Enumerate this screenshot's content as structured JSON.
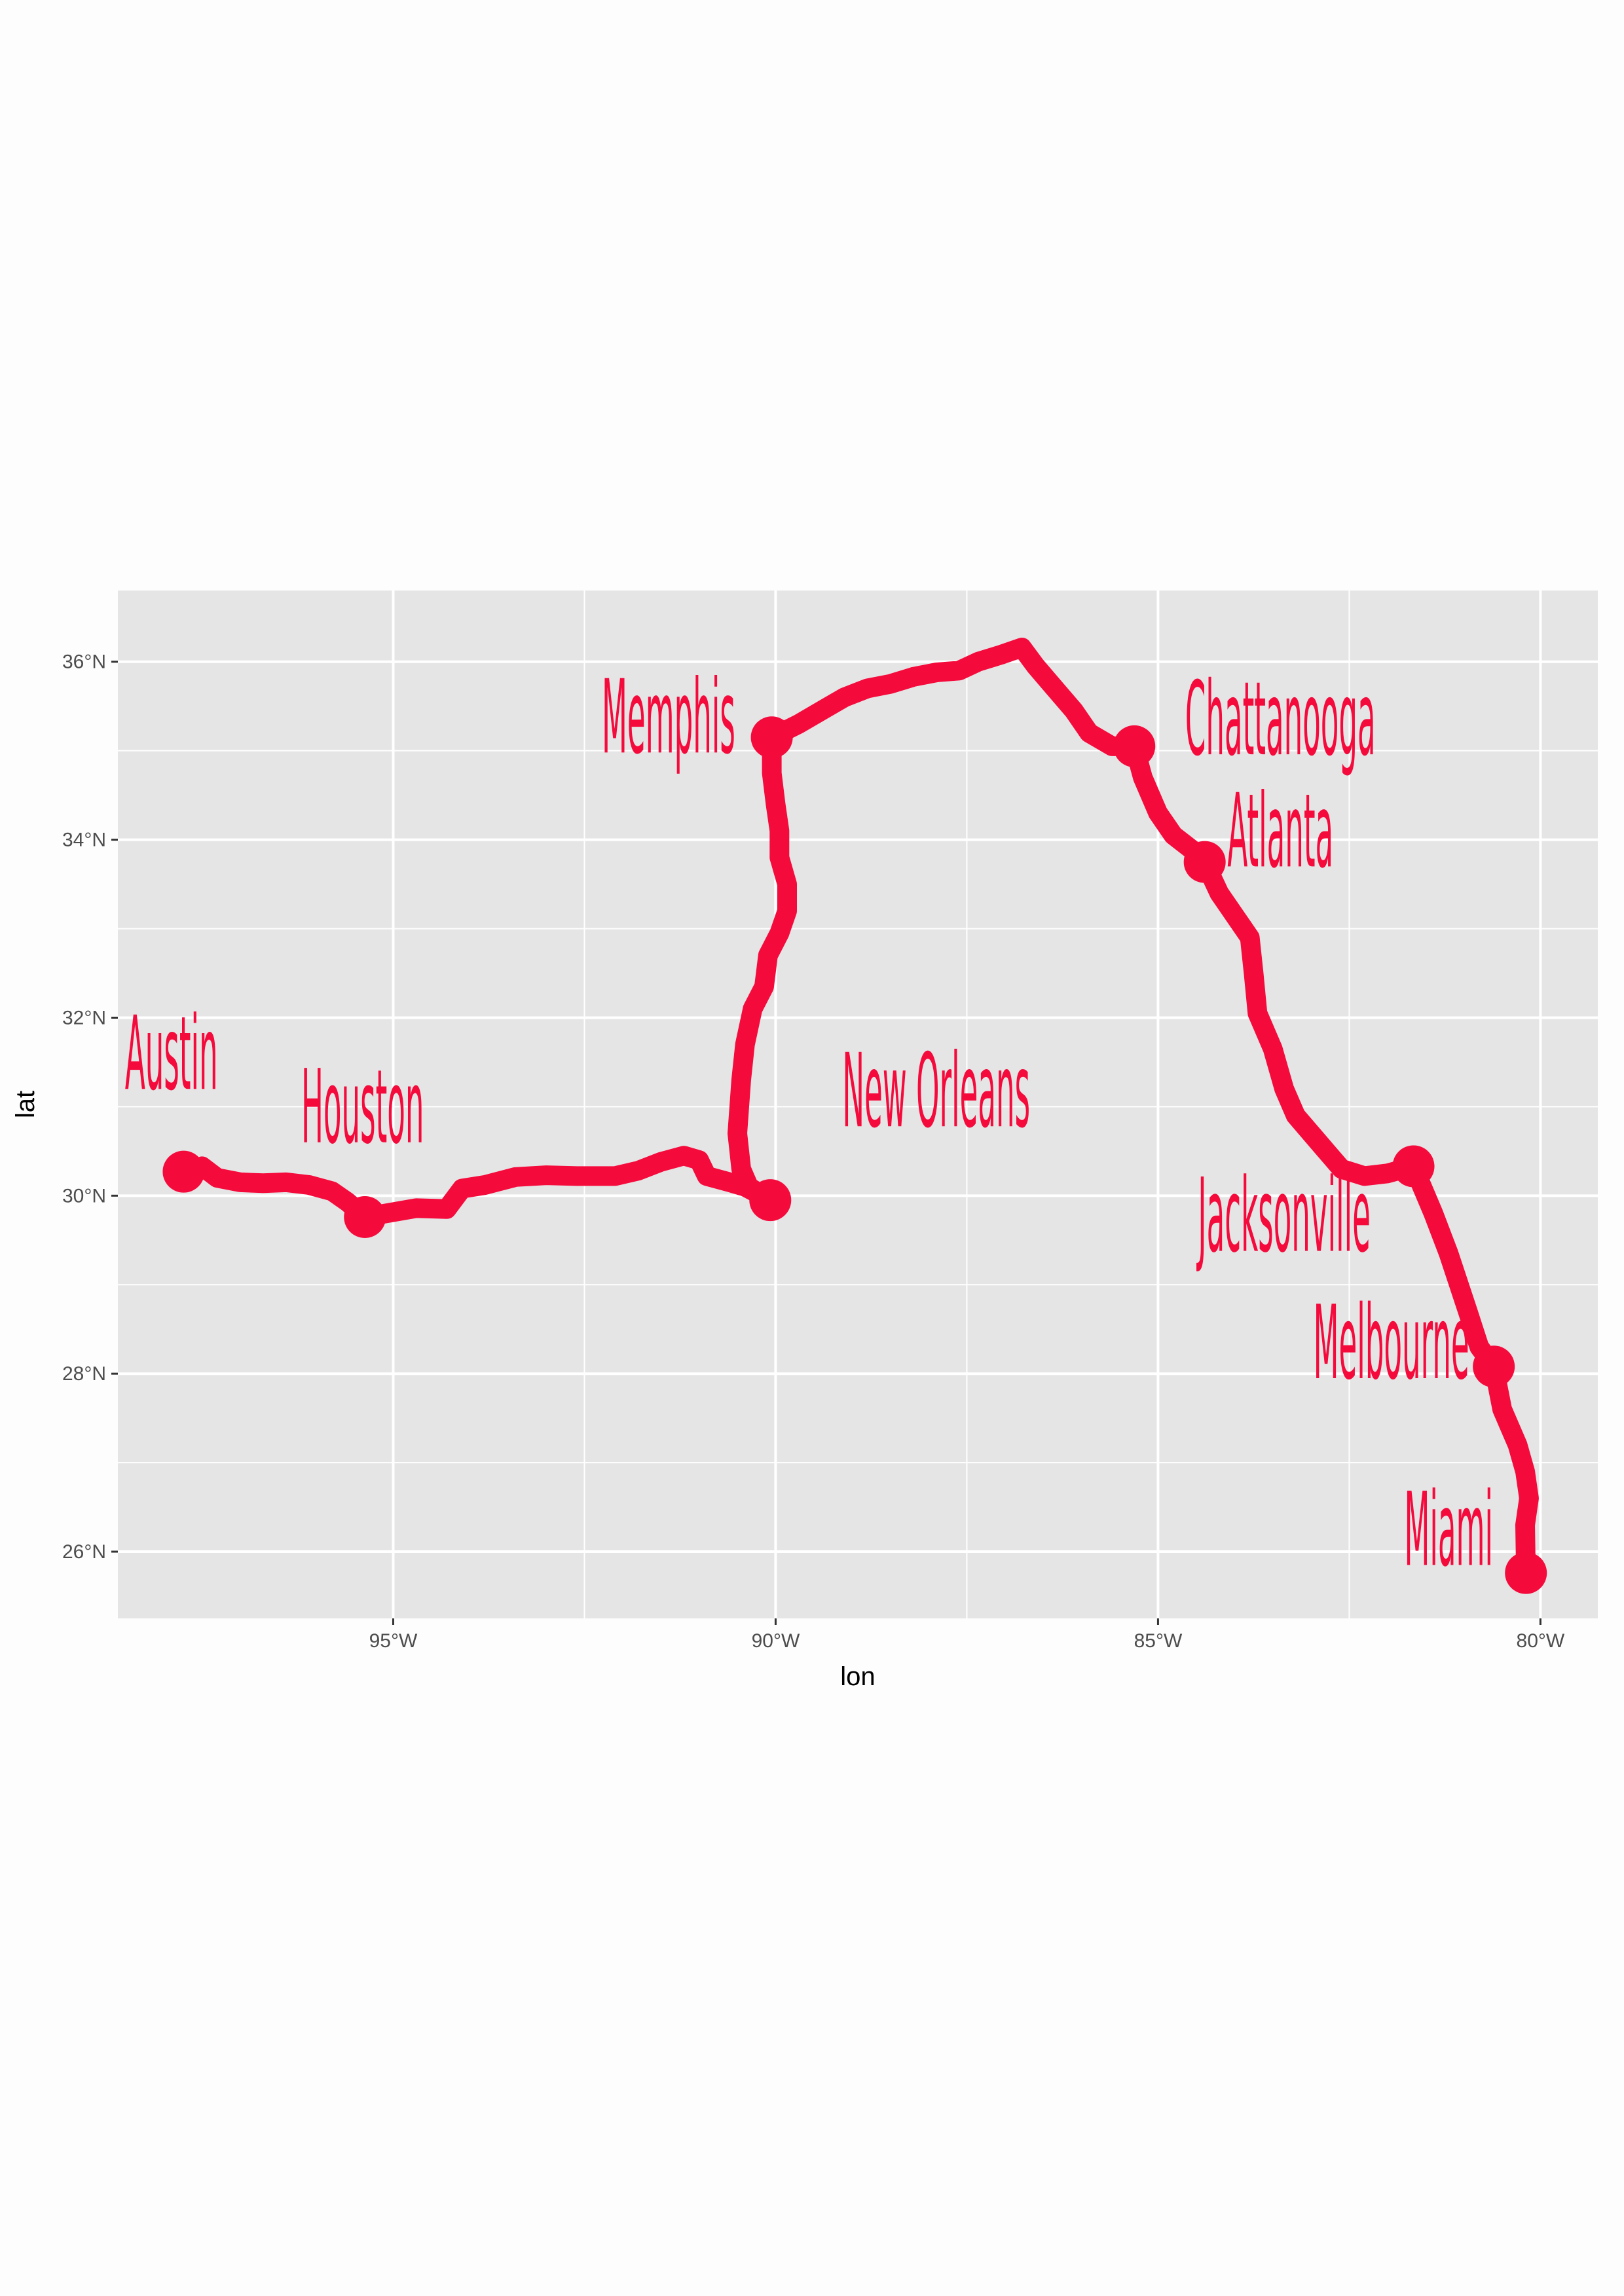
{
  "chart_data": {
    "type": "line",
    "xlabel": "lon",
    "ylabel": "lat",
    "xlim": [
      -98.6,
      -79.25
    ],
    "ylim": [
      25.25,
      36.8
    ],
    "x_ticks": [
      -95,
      -90,
      -85,
      -80
    ],
    "x_tick_labels": [
      "95°W",
      "90°W",
      "85°W",
      "80°W"
    ],
    "y_ticks": [
      26,
      28,
      30,
      32,
      34,
      36
    ],
    "y_tick_labels": [
      "26°N",
      "28°N",
      "30°N",
      "32°N",
      "34°N",
      "36°N"
    ],
    "grid": true,
    "colors": {
      "route": "#f50a3c",
      "panel": "#e5e5e5",
      "grid": "#ffffff"
    },
    "route": [
      [
        -97.74,
        30.27
      ],
      [
        -97.5,
        30.33
      ],
      [
        -97.3,
        30.2
      ],
      [
        -97.0,
        30.15
      ],
      [
        -96.7,
        30.14
      ],
      [
        -96.4,
        30.15
      ],
      [
        -96.1,
        30.12
      ],
      [
        -95.8,
        30.05
      ],
      [
        -95.6,
        29.93
      ],
      [
        -95.37,
        29.76
      ],
      [
        -95.1,
        29.8
      ],
      [
        -94.7,
        29.86
      ],
      [
        -94.3,
        29.85
      ],
      [
        -94.1,
        30.08
      ],
      [
        -93.8,
        30.12
      ],
      [
        -93.4,
        30.21
      ],
      [
        -93.0,
        30.23
      ],
      [
        -92.6,
        30.22
      ],
      [
        -92.1,
        30.22
      ],
      [
        -91.8,
        30.28
      ],
      [
        -91.5,
        30.38
      ],
      [
        -91.2,
        30.45
      ],
      [
        -91.0,
        30.4
      ],
      [
        -90.9,
        30.22
      ],
      [
        -90.6,
        30.15
      ],
      [
        -90.4,
        30.1
      ],
      [
        -90.07,
        29.95
      ],
      [
        -90.35,
        30.1
      ],
      [
        -90.45,
        30.3
      ],
      [
        -90.5,
        30.7
      ],
      [
        -90.45,
        31.3
      ],
      [
        -90.4,
        31.7
      ],
      [
        -90.3,
        32.1
      ],
      [
        -90.15,
        32.35
      ],
      [
        -90.1,
        32.7
      ],
      [
        -89.95,
        32.95
      ],
      [
        -89.85,
        33.2
      ],
      [
        -89.85,
        33.5
      ],
      [
        -89.95,
        33.8
      ],
      [
        -89.95,
        34.1
      ],
      [
        -90.0,
        34.4
      ],
      [
        -90.05,
        34.75
      ],
      [
        -90.05,
        35.15
      ],
      [
        -89.7,
        35.3
      ],
      [
        -89.4,
        35.45
      ],
      [
        -89.1,
        35.6
      ],
      [
        -88.8,
        35.7
      ],
      [
        -88.5,
        35.75
      ],
      [
        -88.2,
        35.83
      ],
      [
        -87.9,
        35.88
      ],
      [
        -87.6,
        35.9
      ],
      [
        -87.35,
        36.0
      ],
      [
        -87.05,
        36.08
      ],
      [
        -86.78,
        36.16
      ],
      [
        -86.6,
        35.95
      ],
      [
        -86.35,
        35.7
      ],
      [
        -86.1,
        35.45
      ],
      [
        -85.9,
        35.2
      ],
      [
        -85.6,
        35.05
      ],
      [
        -85.31,
        35.05
      ],
      [
        -85.2,
        34.7
      ],
      [
        -85.0,
        34.3
      ],
      [
        -84.8,
        34.05
      ],
      [
        -84.5,
        33.85
      ],
      [
        -84.39,
        33.75
      ],
      [
        -84.2,
        33.4
      ],
      [
        -84.0,
        33.15
      ],
      [
        -83.8,
        32.9
      ],
      [
        -83.75,
        32.5
      ],
      [
        -83.7,
        32.05
      ],
      [
        -83.5,
        31.65
      ],
      [
        -83.35,
        31.2
      ],
      [
        -83.2,
        30.9
      ],
      [
        -82.9,
        30.6
      ],
      [
        -82.6,
        30.3
      ],
      [
        -82.3,
        30.22
      ],
      [
        -82.0,
        30.25
      ],
      [
        -81.66,
        30.33
      ],
      [
        -81.4,
        29.8
      ],
      [
        -81.2,
        29.35
      ],
      [
        -80.95,
        28.7
      ],
      [
        -80.8,
        28.3
      ],
      [
        -80.61,
        28.08
      ],
      [
        -80.5,
        27.6
      ],
      [
        -80.3,
        27.2
      ],
      [
        -80.2,
        26.9
      ],
      [
        -80.15,
        26.6
      ],
      [
        -80.2,
        26.3
      ],
      [
        -80.19,
        25.76
      ]
    ],
    "cities": [
      {
        "name": "Austin",
        "lon": -97.74,
        "lat": 30.27,
        "label_lon": -97.9,
        "label_lat": 31.2,
        "anchor": "middle"
      },
      {
        "name": "Houston",
        "lon": -95.37,
        "lat": 29.76,
        "label_lon": -95.4,
        "label_lat": 30.6,
        "anchor": "middle"
      },
      {
        "name": "New Orleans",
        "lon": -90.07,
        "lat": 29.95,
        "label_lon": -87.9,
        "label_lat": 30.78,
        "anchor": "middle"
      },
      {
        "name": "Memphis",
        "lon": -90.05,
        "lat": 35.15,
        "label_lon": -91.4,
        "label_lat": 34.98,
        "anchor": "middle"
      },
      {
        "name": "Chattanooga",
        "lon": -85.31,
        "lat": 35.05,
        "label_lon": -83.4,
        "label_lat": 34.96,
        "anchor": "middle"
      },
      {
        "name": "Atlanta",
        "lon": -84.39,
        "lat": 33.75,
        "label_lon": -83.4,
        "label_lat": 33.7,
        "anchor": "middle"
      },
      {
        "name": "Jacksonville",
        "lon": -81.66,
        "lat": 30.33,
        "label_lon": -83.35,
        "label_lat": 29.38,
        "anchor": "middle"
      },
      {
        "name": "Melbourne",
        "lon": -80.61,
        "lat": 28.08,
        "label_lon": -81.95,
        "label_lat": 27.95,
        "anchor": "middle"
      },
      {
        "name": "Miami",
        "lon": -80.19,
        "lat": 25.76,
        "label_lon": -81.2,
        "label_lat": 25.85,
        "anchor": "middle"
      }
    ]
  }
}
